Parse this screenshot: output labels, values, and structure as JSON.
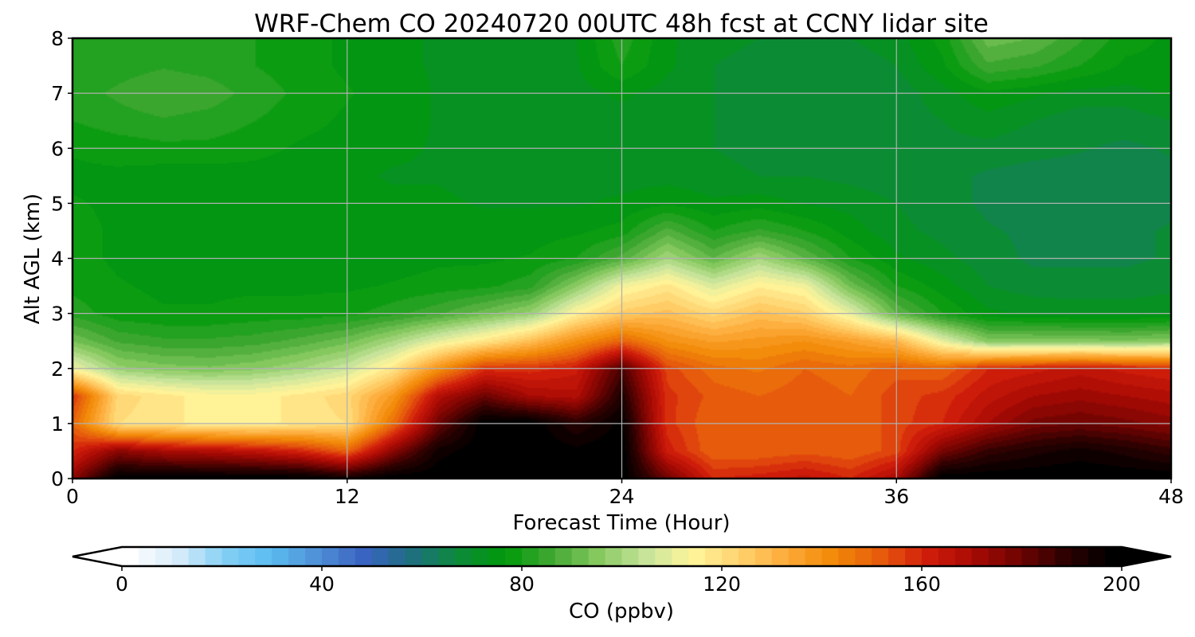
{
  "chart_data": {
    "type": "heatmap",
    "title": "WRF-Chem CO  20240720 00UTC 48h fcst at CCNY lidar site",
    "xlabel": "Forecast Time (Hour)",
    "ylabel": "Alt AGL (km)",
    "xlim": [
      0,
      48
    ],
    "ylim": [
      0,
      8
    ],
    "xticks": [
      0,
      12,
      24,
      36,
      48
    ],
    "yticks": [
      0,
      1,
      2,
      3,
      4,
      5,
      6,
      7,
      8
    ],
    "grid": true,
    "colorbar": {
      "label": "CO  (ppbv)",
      "min": 0,
      "max": 200,
      "ticks": [
        0,
        40,
        80,
        120,
        160,
        200
      ],
      "extend": "both",
      "colors": [
        "#ffffff",
        "#d7ecfa",
        "#86d0f5",
        "#5cbcf0",
        "#4f8fd6",
        "#3a63c2",
        "#1e6f80",
        "#0d8a3a",
        "#00990a",
        "#41a832",
        "#86c960",
        "#c6e39a",
        "#fff59c",
        "#ffd36e",
        "#fdab3a",
        "#f28a08",
        "#e65c0c",
        "#d21e0c",
        "#a80a04",
        "#6e0402",
        "#2a0100",
        "#000000"
      ]
    },
    "times": [
      0,
      2,
      4,
      6,
      8,
      10,
      12,
      14,
      16,
      18,
      20,
      22,
      24,
      26,
      28,
      30,
      32,
      34,
      36,
      38,
      40,
      42,
      44,
      46,
      48
    ],
    "altitudes_km": [
      0.0,
      0.5,
      1.0,
      1.5,
      2.0,
      2.5,
      3.0,
      3.5,
      4.0,
      4.5,
      5.0,
      5.5,
      6.0,
      6.5,
      7.0,
      7.5,
      8.0
    ],
    "co_ppbv": [
      [
        175,
        200,
        200,
        200,
        200,
        200,
        195,
        200,
        200,
        200,
        200,
        200,
        200,
        180,
        160,
        162,
        165,
        160,
        170,
        200,
        200,
        200,
        200,
        200,
        200
      ],
      [
        160,
        175,
        170,
        168,
        165,
        160,
        150,
        175,
        195,
        200,
        200,
        198,
        200,
        162,
        150,
        150,
        152,
        150,
        155,
        178,
        188,
        192,
        195,
        192,
        188
      ],
      [
        150,
        120,
        118,
        115,
        115,
        118,
        120,
        148,
        180,
        200,
        200,
        190,
        198,
        158,
        150,
        150,
        152,
        150,
        155,
        160,
        170,
        178,
        180,
        178,
        175
      ],
      [
        158,
        122,
        118,
        115,
        115,
        118,
        122,
        138,
        168,
        180,
        170,
        168,
        192,
        158,
        152,
        150,
        152,
        150,
        155,
        158,
        165,
        170,
        172,
        170,
        168
      ],
      [
        112,
        98,
        95,
        94,
        96,
        100,
        106,
        118,
        140,
        158,
        158,
        162,
        185,
        155,
        148,
        146,
        150,
        148,
        152,
        150,
        160,
        162,
        165,
        162,
        160
      ],
      [
        93,
        86,
        84,
        84,
        85,
        88,
        92,
        100,
        110,
        118,
        128,
        140,
        150,
        140,
        136,
        138,
        140,
        136,
        130,
        110,
        95,
        95,
        95,
        94,
        96
      ],
      [
        82,
        78,
        77,
        77,
        78,
        78,
        79,
        82,
        86,
        92,
        98,
        115,
        125,
        128,
        122,
        128,
        124,
        110,
        90,
        80,
        74,
        73,
        72,
        72,
        73
      ],
      [
        79,
        77,
        76,
        76,
        76,
        76,
        76,
        77,
        78,
        79,
        82,
        96,
        112,
        118,
        108,
        116,
        112,
        92,
        80,
        75,
        70,
        68,
        68,
        68,
        69
      ],
      [
        78,
        76,
        75,
        75,
        75,
        75,
        75,
        75,
        76,
        76,
        77,
        80,
        88,
        100,
        90,
        100,
        90,
        80,
        74,
        71,
        68,
        66,
        66,
        66,
        67
      ],
      [
        78,
        76,
        75,
        75,
        75,
        75,
        75,
        75,
        75,
        75,
        75,
        76,
        78,
        88,
        80,
        84,
        80,
        75,
        71,
        69,
        67,
        66,
        65,
        66,
        67
      ],
      [
        77,
        76,
        75,
        75,
        75,
        75,
        75,
        74,
        74,
        73,
        73,
        73,
        74,
        76,
        74,
        75,
        73,
        72,
        70,
        68,
        66,
        65,
        65,
        65,
        66
      ],
      [
        76,
        76,
        75,
        75,
        75,
        74,
        74,
        73,
        73,
        72,
        72,
        72,
        72,
        72,
        71,
        70,
        70,
        69,
        68,
        68,
        66,
        65,
        65,
        65,
        66
      ],
      [
        77,
        78,
        79,
        79,
        78,
        76,
        75,
        74,
        73,
        72,
        72,
        72,
        72,
        71,
        70,
        69,
        68,
        68,
        68,
        69,
        69,
        68,
        67,
        66,
        67
      ],
      [
        80,
        82,
        83,
        82,
        80,
        78,
        76,
        75,
        73,
        72,
        72,
        72,
        72,
        71,
        70,
        69,
        68,
        68,
        68,
        70,
        72,
        70,
        68,
        68,
        70
      ],
      [
        82,
        84,
        86,
        85,
        82,
        79,
        77,
        75,
        73,
        72,
        72,
        72,
        74,
        72,
        70,
        69,
        68,
        68,
        68,
        72,
        76,
        74,
        72,
        72,
        74
      ],
      [
        80,
        82,
        83,
        82,
        80,
        78,
        76,
        74,
        73,
        72,
        72,
        73,
        80,
        74,
        70,
        69,
        68,
        68,
        70,
        76,
        86,
        84,
        80,
        76,
        76
      ],
      [
        80,
        80,
        80,
        80,
        80,
        78,
        76,
        74,
        73,
        72,
        72,
        73,
        82,
        74,
        71,
        70,
        69,
        70,
        72,
        78,
        92,
        90,
        84,
        78,
        76
      ]
    ]
  }
}
